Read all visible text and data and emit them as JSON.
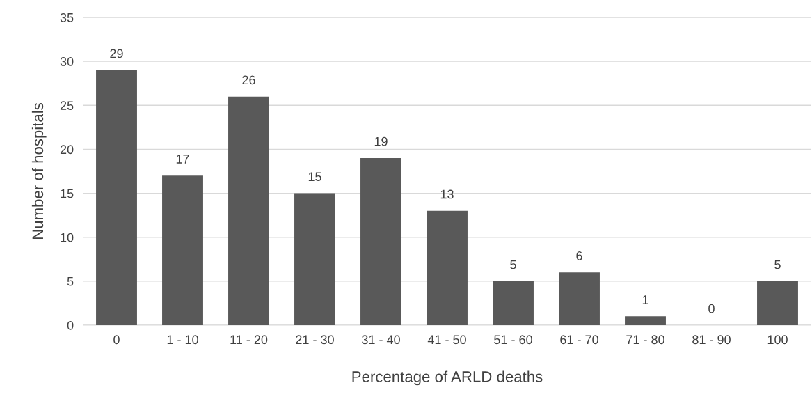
{
  "chart_data": {
    "type": "bar",
    "xlabel": "Percentage of ARLD deaths",
    "ylabel": "Number of hospitals",
    "categories": [
      "0",
      "1 - 10",
      "11 - 20",
      "21 - 30",
      "31 - 40",
      "41 - 50",
      "51 - 60",
      "61 - 70",
      "71 - 80",
      "81 - 90",
      "100"
    ],
    "values": [
      29,
      17,
      26,
      15,
      19,
      13,
      5,
      6,
      1,
      0,
      5
    ],
    "color": "#595959",
    "ylim": [
      0,
      35
    ],
    "yticks": [
      0,
      5,
      10,
      15,
      20,
      25,
      30,
      35
    ],
    "grid": "y",
    "data_labels": true,
    "legend": false
  }
}
